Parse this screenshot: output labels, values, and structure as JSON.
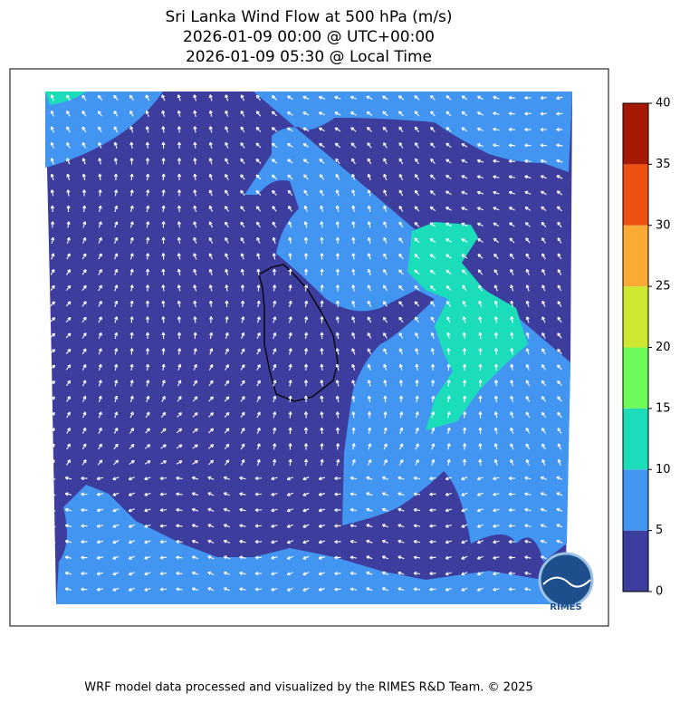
{
  "chart_data": {
    "type": "wind-map",
    "title": [
      "Sri Lanka Wind Flow at 500 hPa (m/s)",
      "2026-01-09 00:00 @ UTC+00:00",
      "2026-01-09 05:30 @ Local Time"
    ],
    "colorbar": {
      "ticks": [
        0,
        5,
        10,
        15,
        20,
        25,
        30,
        35,
        40
      ],
      "colors": [
        "#3d3d9d",
        "#4395f2",
        "#1bddb9",
        "#6dfb5a",
        "#cfe82f",
        "#fbab35",
        "#ee5112",
        "#a51804"
      ]
    },
    "logo": "RIMES",
    "footer": "WRF model data processed and visualized by the RIMES R&D Team. © 2025"
  }
}
